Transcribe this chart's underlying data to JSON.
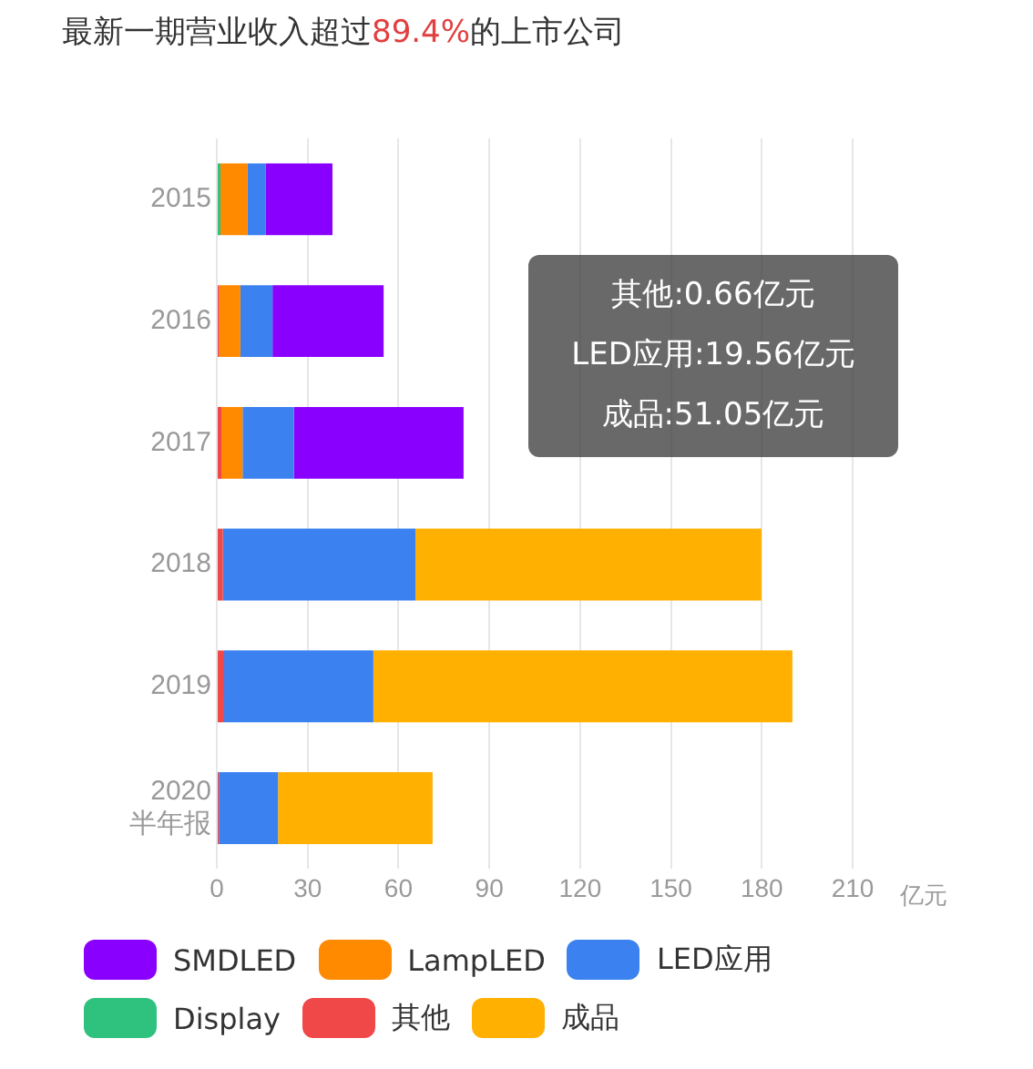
{
  "chart_data": {
    "type": "bar",
    "orientation": "horizontal",
    "stacked": true,
    "title": "最新一期营业收入超过89.4%的上市公司",
    "xlabel": "亿元",
    "categories": [
      "2015",
      "2016",
      "2017",
      "2018",
      "2019",
      "2020 半年报"
    ],
    "series": [
      {
        "name": "Display",
        "color": "#2ec27e",
        "values": [
          1.2,
          null,
          null,
          null,
          null,
          null
        ]
      },
      {
        "name": "其他",
        "color": "#f04848",
        "values": [
          null,
          0.8,
          1.5,
          2.0,
          2.4,
          0.66
        ]
      },
      {
        "name": "LampLED",
        "color": "#ff8a00",
        "values": [
          9,
          7,
          7,
          null,
          null,
          null
        ]
      },
      {
        "name": "LED应用",
        "color": "#3b82f0",
        "values": [
          6,
          10.6,
          17,
          63.6,
          49.3,
          19.56
        ]
      },
      {
        "name": "SMDLED",
        "color": "#8a00ff",
        "values": [
          22,
          36.7,
          56,
          null,
          null,
          null
        ]
      },
      {
        "name": "成品",
        "color": "#ffb000",
        "values": [
          null,
          null,
          null,
          114.3,
          138.4,
          51.05
        ]
      }
    ],
    "xlim": [
      0,
      210
    ],
    "xticks": [
      0,
      30,
      60,
      90,
      120,
      150,
      180,
      210
    ],
    "grid": "x",
    "legend": "bottom",
    "annotations": [
      "其他:0.66亿元",
      "LED应用:19.56亿元",
      "成品:51.05亿元"
    ]
  }
}
